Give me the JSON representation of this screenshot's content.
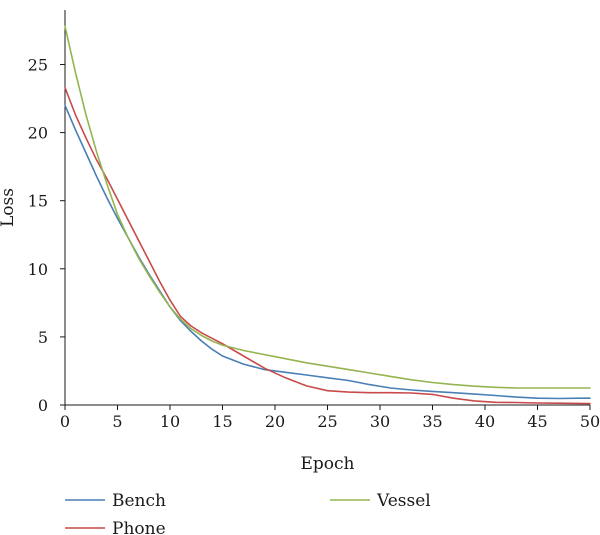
{
  "chart_data": {
    "type": "line",
    "title": "",
    "xlabel": "Epoch",
    "ylabel": "Loss",
    "xlim": [
      0,
      50
    ],
    "ylim": [
      0,
      29
    ],
    "xticks": [
      0,
      5,
      10,
      15,
      20,
      25,
      30,
      35,
      40,
      45,
      50
    ],
    "yticks": [
      0,
      5,
      10,
      15,
      20,
      25
    ],
    "grid": false,
    "legend_position": "bottom",
    "x": [
      0,
      1,
      2,
      3,
      4,
      5,
      6,
      7,
      8,
      9,
      10,
      11,
      12,
      13,
      14,
      15,
      17,
      19,
      21,
      23,
      25,
      27,
      29,
      31,
      33,
      35,
      37,
      39,
      41,
      43,
      45,
      47,
      49,
      50
    ],
    "series": [
      {
        "name": "Bench",
        "color": "#4a7fb5",
        "values": [
          22.0,
          20.2,
          18.5,
          16.8,
          15.2,
          13.7,
          12.3,
          10.9,
          9.6,
          8.4,
          7.2,
          6.2,
          5.4,
          4.7,
          4.1,
          3.6,
          3.0,
          2.6,
          2.4,
          2.2,
          2.0,
          1.8,
          1.5,
          1.25,
          1.1,
          1.0,
          0.9,
          0.8,
          0.7,
          0.58,
          0.5,
          0.48,
          0.5,
          0.5
        ]
      },
      {
        "name": "Phone",
        "color": "#c94a4a",
        "values": [
          23.3,
          21.3,
          19.6,
          18.0,
          16.6,
          15.1,
          13.6,
          12.1,
          10.6,
          9.1,
          7.7,
          6.5,
          5.8,
          5.3,
          4.9,
          4.5,
          3.6,
          2.7,
          2.0,
          1.4,
          1.05,
          0.95,
          0.9,
          0.9,
          0.88,
          0.78,
          0.5,
          0.3,
          0.2,
          0.18,
          0.15,
          0.13,
          0.12,
          0.1
        ]
      },
      {
        "name": "Vessel",
        "color": "#93b550",
        "values": [
          27.8,
          24.4,
          21.3,
          18.6,
          16.2,
          14.0,
          12.3,
          10.8,
          9.5,
          8.3,
          7.2,
          6.3,
          5.6,
          5.1,
          4.7,
          4.4,
          4.0,
          3.7,
          3.4,
          3.1,
          2.85,
          2.6,
          2.35,
          2.1,
          1.85,
          1.65,
          1.5,
          1.38,
          1.3,
          1.25,
          1.25,
          1.25,
          1.25,
          1.25
        ]
      }
    ]
  }
}
